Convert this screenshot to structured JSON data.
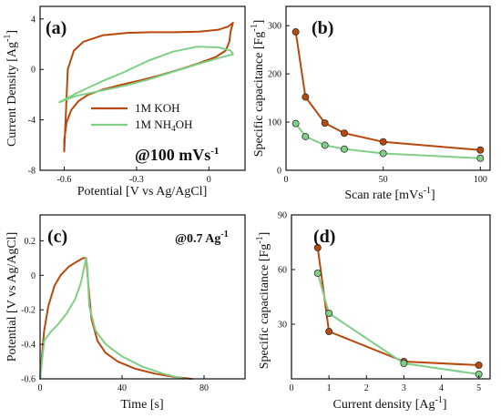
{
  "figure": {
    "colors": {
      "koh": "#b8480c",
      "nh4oh": "#7fcf86",
      "axis": "#111111"
    },
    "panels": [
      {
        "id": "a",
        "panel_label": "(a)",
        "annotation": "@100 mVs",
        "annotation_sup": "-1",
        "xlabel": "Potential [V vs Ag/AgCl]",
        "ylabel": "Current Density [Ag",
        "ylabel_sup": "-1",
        "ylabel_tail": "]",
        "legend": [
          {
            "text": "1M KOH",
            "sub": "",
            "tail": "",
            "color": "koh"
          },
          {
            "text": "1M NH",
            "sub": "4",
            "tail": "OH",
            "color": "nh4oh"
          }
        ]
      },
      {
        "id": "b",
        "panel_label": "(b)",
        "xlabel": "Scan rate [mVs",
        "xlabel_sup": "-1",
        "xlabel_tail": "]",
        "ylabel": "Specific capacitance [Fg",
        "ylabel_sup": "-1",
        "ylabel_tail": "]"
      },
      {
        "id": "c",
        "panel_label": "(c)",
        "annotation": "@0.7 Ag",
        "annotation_sup": "-1",
        "xlabel": "Time [s]",
        "ylabel": "Potential [V vs Ag/AgCl]"
      },
      {
        "id": "d",
        "panel_label": "(d)",
        "xlabel": "Current density [Ag",
        "xlabel_sup": "-1",
        "xlabel_tail": "]",
        "ylabel": "Specific capacitance [Fg",
        "ylabel_sup": "-1",
        "ylabel_tail": "]"
      }
    ]
  },
  "chart_data": [
    {
      "id": "a",
      "type": "line",
      "title": "(a)",
      "xlabel": "Potential [V vs Ag/AgCl]",
      "ylabel": "Current Density [Ag-1]",
      "xlim": [
        -0.7,
        0.15
      ],
      "ylim": [
        -8,
        5
      ],
      "xticks": [
        -0.6,
        -0.3,
        0.0
      ],
      "yticks": [
        -8,
        -4,
        0,
        4
      ],
      "series": [
        {
          "name": "1M KOH",
          "color": "koh",
          "x": [
            -0.6,
            -0.6,
            -0.59,
            -0.57,
            -0.54,
            -0.5,
            -0.44,
            -0.36,
            -0.28,
            -0.2,
            -0.12,
            -0.04,
            0.03,
            0.07,
            0.085,
            0.09,
            0.1,
            0.08,
            0.04,
            -0.04,
            -0.14,
            -0.24,
            -0.34,
            -0.44,
            -0.52,
            -0.56,
            -0.585,
            -0.6
          ],
          "y": [
            -6.5,
            -5.6,
            -4.2,
            -3.2,
            -2.5,
            -2.0,
            -1.6,
            -1.2,
            -0.85,
            -0.45,
            0.0,
            0.5,
            1.0,
            1.5,
            2.2,
            3.0,
            3.7,
            3.4,
            3.15,
            3.0,
            2.95,
            2.95,
            2.9,
            2.7,
            2.2,
            1.5,
            0.0,
            -6.5
          ]
        },
        {
          "name": "1M NH4OH",
          "color": "nh4oh",
          "x": [
            -0.62,
            -0.55,
            -0.45,
            -0.35,
            -0.25,
            -0.15,
            -0.05,
            0.04,
            0.1,
            0.09,
            0.04,
            -0.05,
            -0.15,
            -0.25,
            -0.35,
            -0.45,
            -0.55,
            -0.62
          ],
          "y": [
            -2.6,
            -2.1,
            -1.7,
            -1.3,
            -0.8,
            -0.2,
            0.4,
            0.9,
            1.2,
            1.5,
            1.75,
            1.8,
            1.4,
            0.7,
            -0.2,
            -1.0,
            -1.9,
            -2.6
          ]
        }
      ]
    },
    {
      "id": "b",
      "type": "line",
      "title": "(b)",
      "xlabel": "Scan rate [mVs-1]",
      "ylabel": "Specific capacitance [Fg-1]",
      "xlim": [
        0,
        105
      ],
      "ylim": [
        0,
        340
      ],
      "xticks": [
        0,
        50,
        100
      ],
      "yticks": [
        0,
        100,
        200,
        300
      ],
      "series": [
        {
          "name": "1M KOH",
          "color": "koh",
          "x": [
            5,
            10,
            20,
            30,
            50,
            100
          ],
          "y": [
            287,
            152,
            98,
            77,
            59,
            42
          ]
        },
        {
          "name": "1M NH4OH",
          "color": "nh4oh",
          "x": [
            5,
            10,
            20,
            30,
            50,
            100
          ],
          "y": [
            97,
            70,
            52,
            44,
            35,
            25
          ]
        }
      ]
    },
    {
      "id": "c",
      "type": "line",
      "title": "(c)",
      "xlabel": "Time [s]",
      "ylabel": "Potential [V vs Ag/AgCl]",
      "xlim": [
        0,
        100
      ],
      "ylim": [
        -0.6,
        0.35
      ],
      "xticks": [
        0,
        40,
        80
      ],
      "yticks": [
        -0.6,
        -0.4,
        -0.2,
        0.0,
        0.2
      ],
      "series": [
        {
          "name": "1M KOH",
          "color": "koh",
          "x": [
            0,
            1,
            2,
            4,
            7,
            10,
            14,
            18,
            21,
            22.5,
            23.5,
            25,
            28,
            32,
            38,
            46,
            56,
            66,
            74
          ],
          "y": [
            -0.6,
            -0.45,
            -0.32,
            -0.18,
            -0.06,
            0.0,
            0.05,
            0.08,
            0.1,
            0.1,
            -0.05,
            -0.25,
            -0.38,
            -0.45,
            -0.5,
            -0.54,
            -0.57,
            -0.59,
            -0.6
          ]
        },
        {
          "name": "1M NH4OH",
          "color": "nh4oh",
          "x": [
            0,
            2,
            5,
            9,
            13,
            17,
            20,
            21.5,
            22.5,
            23,
            24,
            27,
            32,
            40,
            50,
            60,
            70
          ],
          "y": [
            -0.6,
            -0.38,
            -0.33,
            -0.28,
            -0.22,
            -0.14,
            -0.04,
            0.05,
            0.1,
            0.05,
            -0.18,
            -0.32,
            -0.4,
            -0.47,
            -0.53,
            -0.57,
            -0.6
          ]
        }
      ]
    },
    {
      "id": "d",
      "type": "line",
      "title": "(d)",
      "xlabel": "Current density [Ag-1]",
      "ylabel": "Specific capacitance [Fg-1]",
      "xlim": [
        0,
        5.3
      ],
      "ylim": [
        0,
        90
      ],
      "xticks": [
        0,
        1,
        2,
        3,
        4,
        5
      ],
      "yticks": [
        30,
        60,
        90
      ],
      "series": [
        {
          "name": "1M KOH",
          "color": "koh",
          "x": [
            0.7,
            1,
            3,
            5
          ],
          "y": [
            72,
            26,
            9.5,
            7.5
          ]
        },
        {
          "name": "1M NH4OH",
          "color": "nh4oh",
          "x": [
            0.7,
            1,
            3,
            5
          ],
          "y": [
            58,
            36,
            8.5,
            2.5
          ]
        }
      ]
    }
  ]
}
